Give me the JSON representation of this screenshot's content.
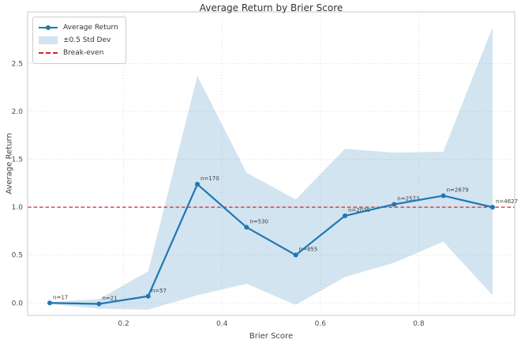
{
  "colors": {
    "line": "#1f77b4",
    "band": "#1f77b4",
    "band_alpha": 0.2,
    "band_solid": "#d2e4f0",
    "breakeven": "#d62728",
    "grid": "#dadada",
    "spine": "#c9c9c9",
    "title_text": "#333333",
    "label_text": "#424242",
    "tick_text": "#4d4d4d",
    "point_label_text": "#3c3c3c"
  },
  "chart_data": {
    "type": "line",
    "title": "Average Return by Brier Score",
    "xlabel": "Brier Score",
    "ylabel": "Average Return",
    "xlim": [
      0.005,
      0.995
    ],
    "ylim": [
      -0.13,
      3.04
    ],
    "xticks": [
      0.2,
      0.4,
      0.6,
      0.8
    ],
    "yticks": [
      0.0,
      0.5,
      1.0,
      1.5,
      2.0,
      2.5
    ],
    "grid": true,
    "legend": {
      "position": "upper left",
      "entries": [
        "Average Return",
        "±0.5 Std Dev",
        "Break-even"
      ]
    },
    "breakeven_y": 1.0,
    "x": [
      0.05,
      0.15,
      0.25,
      0.35,
      0.45,
      0.55,
      0.65,
      0.75,
      0.85,
      0.95
    ],
    "series": [
      {
        "name": "Average Return",
        "values": [
          0.0,
          -0.01,
          0.07,
          1.24,
          0.79,
          0.5,
          0.91,
          1.03,
          1.12,
          1.0
        ]
      },
      {
        "name": "Band upper (+0.5 std)",
        "values": [
          0.01,
          0.04,
          0.33,
          2.37,
          1.36,
          1.08,
          1.61,
          1.57,
          1.58,
          2.88
        ]
      },
      {
        "name": "Band lower (-0.5 std)",
        "values": [
          -0.01,
          -0.06,
          -0.07,
          0.08,
          0.2,
          -0.02,
          0.27,
          0.42,
          0.64,
          0.08
        ]
      }
    ],
    "point_labels": [
      "n=17",
      "n=21",
      "n=57",
      "n=170",
      "n=530",
      "n=855",
      "n=2039",
      "n=2573",
      "n=2679",
      "n=4627"
    ]
  }
}
